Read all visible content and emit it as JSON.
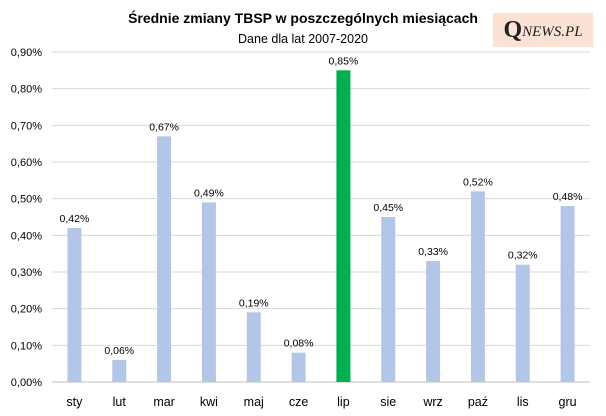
{
  "logo": {
    "q": "Q",
    "rest": "NEWS.PL"
  },
  "chart_data": {
    "type": "bar",
    "title": "Średnie zmiany TBSP w poszczególnych miesiącach",
    "subtitle": "Dane dla lat 2007-2020",
    "categories": [
      "sty",
      "lut",
      "mar",
      "kwi",
      "maj",
      "cze",
      "lip",
      "sie",
      "wrz",
      "paź",
      "lis",
      "gru"
    ],
    "values": [
      0.42,
      0.06,
      0.67,
      0.49,
      0.19,
      0.08,
      0.85,
      0.45,
      0.33,
      0.52,
      0.32,
      0.48
    ],
    "data_labels": [
      "0,42%",
      "0,06%",
      "0,67%",
      "0,49%",
      "0,19%",
      "0,08%",
      "0,85%",
      "0,45%",
      "0,33%",
      "0,52%",
      "0,32%",
      "0,48%"
    ],
    "y_ticks": [
      0,
      0.1,
      0.2,
      0.3,
      0.4,
      0.5,
      0.6,
      0.7,
      0.8,
      0.9
    ],
    "y_tick_labels": [
      "0,00%",
      "0,10%",
      "0,20%",
      "0,30%",
      "0,40%",
      "0,50%",
      "0,60%",
      "0,70%",
      "0,80%",
      "0,90%"
    ],
    "ylim": [
      0,
      0.9
    ],
    "grid": true,
    "colors": {
      "default": "#b4c6e7",
      "highlight": "#00b050",
      "grid": "#d9d9d9"
    },
    "highlight_index": 6
  }
}
